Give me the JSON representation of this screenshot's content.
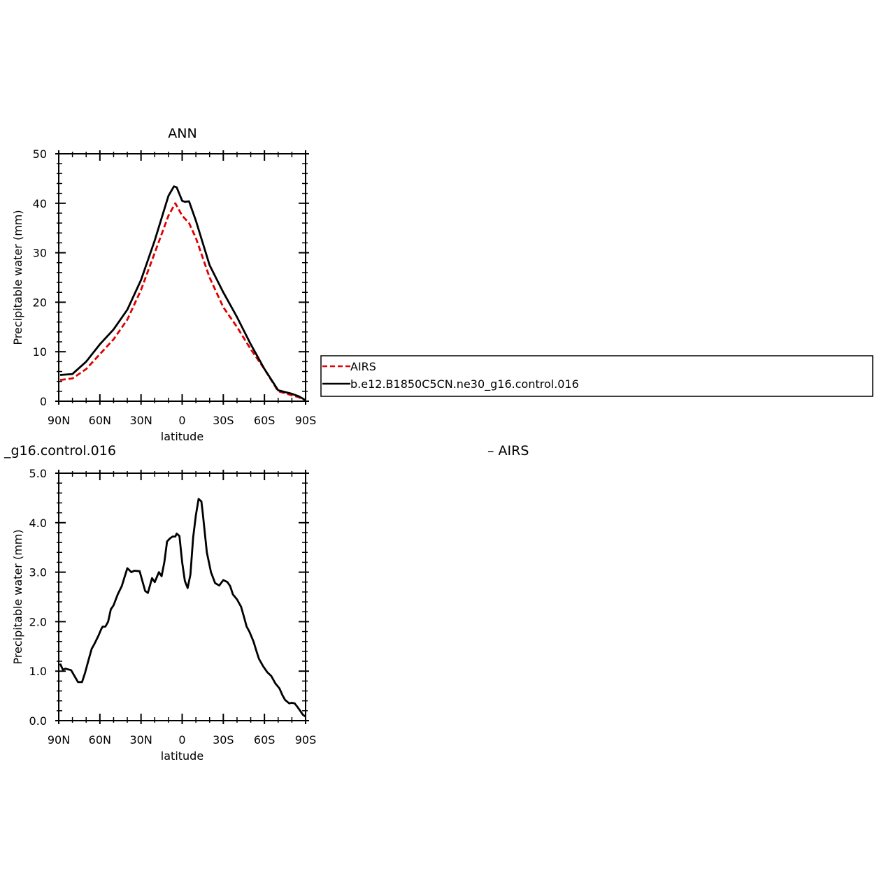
{
  "figure": {
    "top_title": "ANN",
    "bottom_title_left": "_g16.control.016",
    "bottom_title_right": "– AIRS"
  },
  "legend": {
    "entries": [
      {
        "label": "AIRS",
        "color": "#e00000",
        "style": "dashed"
      },
      {
        "label": "b.e12.B1850C5CN.ne30_g16.control.016",
        "color": "#000000",
        "style": "solid"
      }
    ]
  },
  "chart_data": [
    {
      "type": "line",
      "title": "ANN",
      "xlabel": "latitude",
      "ylabel": "Precipitable water  (mm)",
      "xlim": [
        90,
        -90
      ],
      "ylim": [
        0,
        50
      ],
      "xticks": [
        90,
        60,
        30,
        0,
        -30,
        -60,
        -90
      ],
      "xtick_labels": [
        "90N",
        "60N",
        "30N",
        "0",
        "30S",
        "60S",
        "90S"
      ],
      "yticks": [
        0,
        10,
        20,
        30,
        40,
        50
      ],
      "ytick_labels": [
        "0",
        "10",
        "20",
        "30",
        "40",
        "50"
      ],
      "grid": false,
      "legend_position": "right, outside plot",
      "series": [
        {
          "name": "AIRS",
          "color": "#e00000",
          "style": "dashed",
          "x": [
            89,
            80,
            70,
            60,
            50,
            40,
            30,
            20,
            10,
            5,
            0,
            -5,
            -10,
            -20,
            -30,
            -40,
            -50,
            -60,
            -70,
            -80,
            -85,
            -90
          ],
          "y": [
            4.3,
            4.6,
            6.5,
            9.5,
            12.5,
            16.5,
            22.5,
            30.0,
            37.5,
            40.0,
            37.5,
            36.0,
            33.0,
            25.0,
            19.0,
            15.0,
            10.5,
            6.5,
            2.0,
            1.2,
            0.8,
            0.2
          ]
        },
        {
          "name": "b.e12.B1850C5CN.ne30_g16.control.016",
          "color": "#000000",
          "style": "solid",
          "x": [
            89,
            80,
            70,
            60,
            50,
            40,
            30,
            20,
            10,
            6,
            4,
            0,
            -2,
            -5,
            -10,
            -20,
            -30,
            -40,
            -50,
            -60,
            -70,
            -80,
            -85,
            -90
          ],
          "y": [
            5.3,
            5.5,
            8.0,
            11.5,
            14.5,
            18.5,
            24.5,
            32.5,
            41.5,
            43.4,
            43.2,
            40.5,
            40.3,
            40.4,
            36.5,
            27.5,
            22.0,
            17.0,
            11.5,
            6.5,
            2.2,
            1.5,
            1.0,
            0.2
          ]
        }
      ]
    },
    {
      "type": "line",
      "title": "_g16.control.016 – AIRS",
      "xlabel": "latitude",
      "ylabel": "Precipitable water  (mm)",
      "xlim": [
        90,
        -90
      ],
      "ylim": [
        0,
        5
      ],
      "xticks": [
        90,
        60,
        30,
        0,
        -30,
        -60,
        -90
      ],
      "xtick_labels": [
        "90N",
        "60N",
        "30N",
        "0",
        "30S",
        "60S",
        "90S"
      ],
      "yticks": [
        0,
        1,
        2,
        3,
        4,
        5
      ],
      "ytick_labels": [
        "0.0",
        "1.0",
        "2.0",
        "3.0",
        "4.0",
        "5.0"
      ],
      "grid": false,
      "series": [
        {
          "color": "#000000",
          "style": "solid",
          "x": [
            89,
            87,
            85,
            81,
            76,
            73,
            71,
            68,
            66,
            64,
            61,
            59,
            58,
            56,
            54,
            52,
            50,
            47,
            44,
            42,
            40,
            37,
            35,
            31,
            29,
            27,
            25,
            23,
            22,
            20,
            17,
            15,
            13,
            11,
            9,
            7,
            5,
            4,
            2,
            0,
            -2,
            -4,
            -6,
            -8,
            -10,
            -12,
            -14,
            -15,
            -18,
            -21,
            -24,
            -27,
            -30,
            -33,
            -35,
            -37,
            -40,
            -43,
            -45,
            -47,
            -49,
            -52,
            -54,
            -56,
            -59,
            -62,
            -65,
            -68,
            -71,
            -73,
            -75,
            -78,
            -80,
            -82,
            -84,
            -86,
            -88,
            -90
          ],
          "y": [
            1.15,
            1.03,
            1.05,
            1.02,
            0.78,
            0.78,
            0.95,
            1.25,
            1.45,
            1.55,
            1.72,
            1.85,
            1.9,
            1.9,
            2.0,
            2.25,
            2.33,
            2.55,
            2.72,
            2.9,
            3.08,
            3.0,
            3.03,
            3.02,
            2.82,
            2.62,
            2.58,
            2.78,
            2.88,
            2.8,
            3.0,
            2.92,
            3.2,
            3.62,
            3.68,
            3.72,
            3.72,
            3.78,
            3.73,
            3.2,
            2.82,
            2.68,
            2.95,
            3.7,
            4.15,
            4.48,
            4.43,
            4.2,
            3.4,
            3.0,
            2.78,
            2.73,
            2.84,
            2.8,
            2.72,
            2.55,
            2.45,
            2.3,
            2.1,
            1.9,
            1.8,
            1.6,
            1.42,
            1.25,
            1.1,
            0.98,
            0.9,
            0.75,
            0.65,
            0.52,
            0.42,
            0.35,
            0.36,
            0.35,
            0.28,
            0.2,
            0.12,
            0.08
          ]
        }
      ]
    }
  ]
}
